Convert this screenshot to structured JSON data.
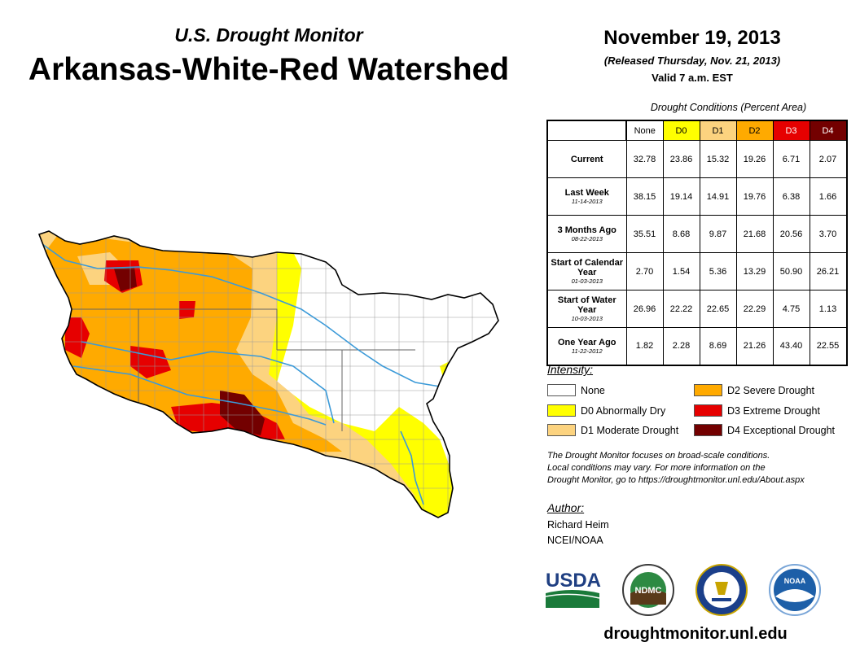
{
  "header": {
    "subtitle": "U.S. Drought Monitor",
    "title": "Arkansas-White-Red Watershed",
    "date": "November 19, 2013",
    "released": "(Released Thursday, Nov. 21, 2013)",
    "valid": "Valid 7 a.m. EST"
  },
  "table": {
    "caption": "Drought Conditions (Percent Area)",
    "columns": [
      "None",
      "D0",
      "D1",
      "D2",
      "D3",
      "D4"
    ],
    "rows": [
      {
        "label": "Current",
        "date": "",
        "values": [
          "32.78",
          "23.86",
          "15.32",
          "19.26",
          "6.71",
          "2.07"
        ]
      },
      {
        "label": "Last Week",
        "date": "11-14-2013",
        "values": [
          "38.15",
          "19.14",
          "14.91",
          "19.76",
          "6.38",
          "1.66"
        ]
      },
      {
        "label": "3 Months Ago",
        "date": "08-22-2013",
        "values": [
          "35.51",
          "8.68",
          "9.87",
          "21.68",
          "20.56",
          "3.70"
        ]
      },
      {
        "label": "Start of Calendar Year",
        "date": "01-03-2013",
        "values": [
          "2.70",
          "1.54",
          "5.36",
          "13.29",
          "50.90",
          "26.21"
        ]
      },
      {
        "label": "Start of Water Year",
        "date": "10-03-2013",
        "values": [
          "26.96",
          "22.22",
          "22.65",
          "22.29",
          "4.75",
          "1.13"
        ]
      },
      {
        "label": "One Year Ago",
        "date": "11-22-2012",
        "values": [
          "1.82",
          "2.28",
          "8.69",
          "21.26",
          "43.40",
          "22.55"
        ]
      }
    ]
  },
  "colors": {
    "none": "#ffffff",
    "d0": "#ffff00",
    "d1": "#fcd37f",
    "d2": "#ffaa00",
    "d3": "#e60000",
    "d4": "#730000",
    "rivers": "#3b9ad8"
  },
  "legend": {
    "title": "Intensity:",
    "items": [
      {
        "label": "None"
      },
      {
        "label": "D0 Abnormally Dry"
      },
      {
        "label": "D1 Moderate Drought"
      },
      {
        "label": "D2 Severe Drought"
      },
      {
        "label": "D3 Extreme Drought"
      },
      {
        "label": "D4 Exceptional Drought"
      }
    ]
  },
  "note": {
    "line1": "The Drought Monitor focuses on broad-scale conditions.",
    "line2": "Local conditions may vary. For more information on the",
    "line3": "Drought Monitor, go to https://droughtmonitor.unl.edu/About.aspx"
  },
  "author": {
    "title": "Author:",
    "name": "Richard Heim",
    "org": "NCEI/NOAA"
  },
  "logos": {
    "usda": "USDA",
    "ndmc": "NDMC",
    "noaa": "NOAA"
  },
  "footer": {
    "url": "droughtmonitor.unl.edu"
  }
}
